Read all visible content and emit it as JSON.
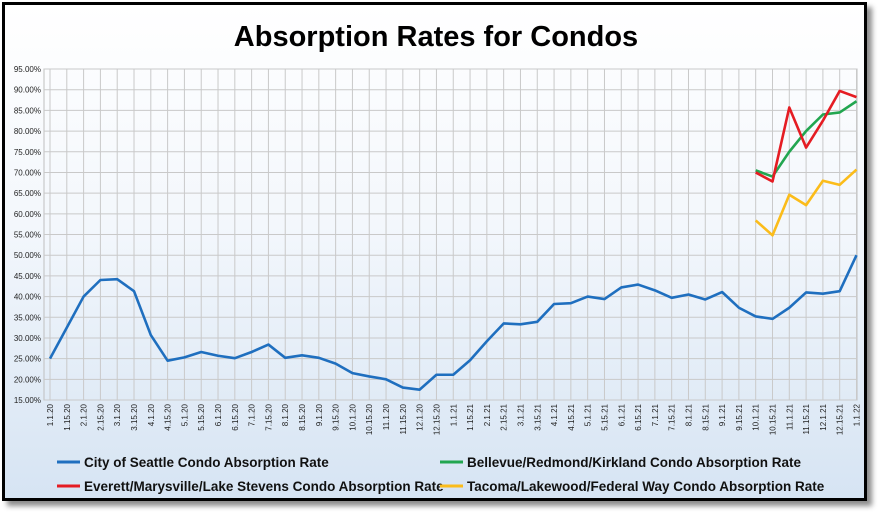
{
  "chart_data": {
    "type": "line",
    "title": "Absorption Rates for Condos",
    "xlabel": "",
    "ylabel": "",
    "ylim": [
      0.15,
      0.95
    ],
    "y_ticks": [
      "95.00%",
      "90.00%",
      "85.00%",
      "80.00%",
      "75.00%",
      "70.00%",
      "65.00%",
      "60.00%",
      "55.00%",
      "50.00%",
      "45.00%",
      "40.00%",
      "35.00%",
      "30.00%",
      "25.00%",
      "20.00%",
      "15.00%"
    ],
    "grid": true,
    "legend_position": "bottom",
    "categories": [
      "1.1.20",
      "1.15.20",
      "2.1.20",
      "2.15.20",
      "3.1.20",
      "3.15.20",
      "4.1.20",
      "4.15.20",
      "5.1.20",
      "5.15.20",
      "6.1.20",
      "6.15.20",
      "7.1.20",
      "7.15.20",
      "8.1.20",
      "8.15.20",
      "9.1.20",
      "9.15.20",
      "10.1.20",
      "10.15.20",
      "11.1.20",
      "11.15.20",
      "12.1.20",
      "12.15.20",
      "1.1.21",
      "1.15.21",
      "2.1.21",
      "2.15.21",
      "3.1.21",
      "3.15.21",
      "4.1.21",
      "4.15.21",
      "5.1.21",
      "5.15.21",
      "6.1.21",
      "6.15.21",
      "7.1.21",
      "7.15.21",
      "8.1.21",
      "8.15.21",
      "9.1.21",
      "9.15.21",
      "10.1.21",
      "10.15.21",
      "11.1.21",
      "11.15.21",
      "12.1.21",
      "12.15.21",
      "1.1.22"
    ],
    "series": [
      {
        "name": "City of Seattle Condo Absorption Rate",
        "color": "#1f6fbf",
        "values": [
          0.25,
          0.325,
          0.4,
          0.44,
          0.442,
          0.413,
          0.307,
          0.245,
          0.253,
          0.266,
          0.257,
          0.251,
          0.266,
          0.284,
          0.252,
          0.258,
          0.252,
          0.238,
          0.215,
          0.207,
          0.2,
          0.18,
          0.175,
          0.211,
          0.211,
          0.246,
          0.292,
          0.335,
          0.333,
          0.339,
          0.382,
          0.384,
          0.4,
          0.394,
          0.422,
          0.429,
          0.415,
          0.397,
          0.405,
          0.393,
          0.411,
          0.373,
          0.352,
          0.346,
          0.373,
          0.41,
          0.407,
          0.413,
          0.5
        ]
      },
      {
        "name": "Bellevue/Redmond/Kirkland Condo Absorption Rate",
        "color": "#22a650",
        "values": [
          null,
          null,
          null,
          null,
          null,
          null,
          null,
          null,
          null,
          null,
          null,
          null,
          null,
          null,
          null,
          null,
          null,
          null,
          null,
          null,
          null,
          null,
          null,
          null,
          null,
          null,
          null,
          null,
          null,
          null,
          null,
          null,
          null,
          null,
          null,
          null,
          null,
          null,
          null,
          null,
          null,
          null,
          0.705,
          0.69,
          0.75,
          0.8,
          0.84,
          0.845,
          0.872
        ]
      },
      {
        "name": "Everett/Marysville/Lake Stevens Condo Absorption Rate",
        "color": "#e51c23",
        "values": [
          null,
          null,
          null,
          null,
          null,
          null,
          null,
          null,
          null,
          null,
          null,
          null,
          null,
          null,
          null,
          null,
          null,
          null,
          null,
          null,
          null,
          null,
          null,
          null,
          null,
          null,
          null,
          null,
          null,
          null,
          null,
          null,
          null,
          null,
          null,
          null,
          null,
          null,
          null,
          null,
          null,
          null,
          0.7,
          0.678,
          0.857,
          0.76,
          0.825,
          0.897,
          0.882
        ]
      },
      {
        "name": "Tacoma/Lakewood/Federal Way Condo Absorption Rate",
        "color": "#fbbc1a",
        "values": [
          null,
          null,
          null,
          null,
          null,
          null,
          null,
          null,
          null,
          null,
          null,
          null,
          null,
          null,
          null,
          null,
          null,
          null,
          null,
          null,
          null,
          null,
          null,
          null,
          null,
          null,
          null,
          null,
          null,
          null,
          null,
          null,
          null,
          null,
          null,
          null,
          null,
          null,
          null,
          null,
          null,
          null,
          0.584,
          0.548,
          0.646,
          0.621,
          0.68,
          0.67,
          0.707
        ]
      }
    ]
  }
}
